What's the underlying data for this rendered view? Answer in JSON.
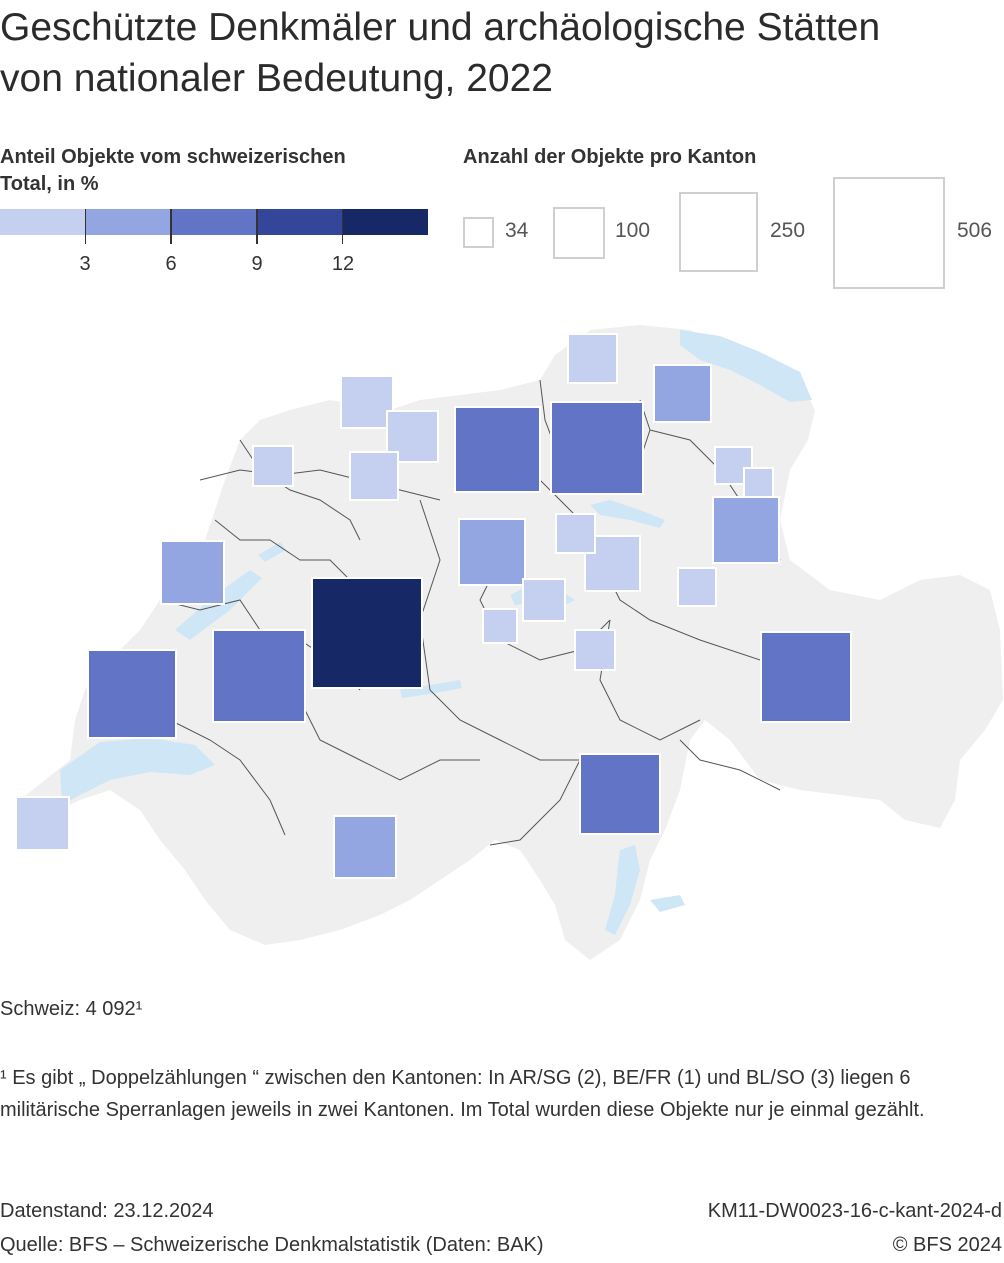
{
  "title_line1": "Geschützte Denkmäler und archäologische Stätten",
  "title_line2": "von nationaler Bedeutung, 2022",
  "legend": {
    "color_title_line1": "Anteil Objekte vom schweizerischen",
    "color_title_line2": "Total, in %",
    "color_ticks": [
      "3",
      "6",
      "9",
      "12"
    ],
    "color_scale": [
      "#c5cff0",
      "#93a6e1",
      "#6274c6",
      "#33469a",
      "#172867"
    ],
    "size_title": "Anzahl der Objekte pro Kanton",
    "size_values": [
      "34",
      "100",
      "250",
      "506"
    ]
  },
  "chart_data": {
    "type": "proportional-symbol-map",
    "symbol": "square",
    "unit": "Anzahl Objekte; Farbe: Anteil vom schweizerischen Total in %",
    "cantons": [
      {
        "share_class": 5,
        "size_class": 4
      },
      {
        "share_class": 3,
        "size_class": 3
      },
      {
        "share_class": 3,
        "size_class": 3
      },
      {
        "share_class": 3,
        "size_class": 3
      },
      {
        "share_class": 3,
        "size_class": 2
      },
      {
        "share_class": 3,
        "size_class": 2
      },
      {
        "share_class": 3,
        "size_class": 2
      },
      {
        "share_class": 2,
        "size_class": 2
      },
      {
        "share_class": 2,
        "size_class": 2
      },
      {
        "share_class": 2,
        "size_class": 2
      },
      {
        "share_class": 2,
        "size_class": 2
      },
      {
        "share_class": 2,
        "size_class": 2
      },
      {
        "share_class": 1,
        "size_class": 1
      },
      {
        "share_class": 1,
        "size_class": 1
      },
      {
        "share_class": 1,
        "size_class": 1
      },
      {
        "share_class": 1,
        "size_class": 1
      },
      {
        "share_class": 1,
        "size_class": 1
      },
      {
        "share_class": 1,
        "size_class": 1
      },
      {
        "share_class": 1,
        "size_class": 1
      },
      {
        "share_class": 1,
        "size_class": 1
      },
      {
        "share_class": 1,
        "size_class": 1
      },
      {
        "share_class": 1,
        "size_class": 1
      },
      {
        "share_class": 1,
        "size_class": 1
      },
      {
        "share_class": 1,
        "size_class": 1
      },
      {
        "share_class": 1,
        "size_class": 1
      },
      {
        "share_class": 1,
        "size_class": 1
      }
    ]
  },
  "total_label": "Schweiz: 4 092¹",
  "footnote": "¹ Es gibt „ Doppelzählungen “ zwischen den Kantonen: In AR/SG (2), BE/FR (1) und BL/SO (3) liegen 6 militärische Sperranlagen jeweils in zwei Kantonen. Im Total wurden diese Objekte nur je einmal gezählt.",
  "footer": {
    "datenstand_label": "Datenstand:",
    "datenstand_value": "23.12.2024",
    "code": "KM11-DW0023-16-c-kant-2024-d",
    "source": "Quelle: BFS – Schweizerische Denkmalstatistik (Daten: BAK)",
    "copyright": "© BFS 2024"
  },
  "colors": {
    "land": "#efefef",
    "lake": "#cfe6f7",
    "border": "#555555",
    "symbol_stroke": "#ffffff"
  }
}
